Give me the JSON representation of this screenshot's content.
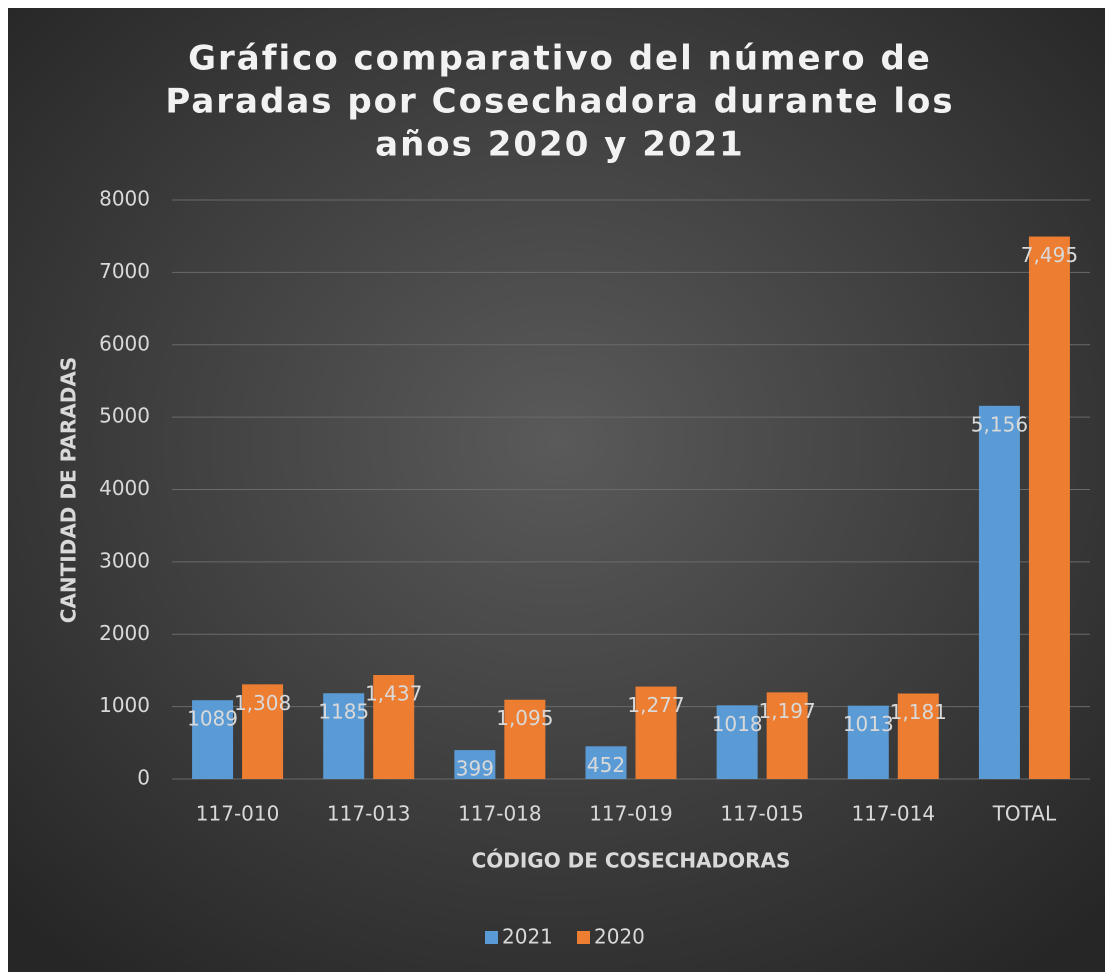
{
  "chart_data": {
    "type": "bar",
    "title": [
      "Gráfico comparativo del número de",
      "Paradas por Cosechadora durante los",
      "años 2020 y 2021"
    ],
    "x_label": "CÓDIGO DE COSECHADORAS",
    "y_label": "CANTIDAD DE PARADAS",
    "categories": [
      "117-010",
      "117-013",
      "117-018",
      "117-019",
      "117-015",
      "117-014",
      "TOTAL"
    ],
    "series": [
      {
        "name": "2021",
        "color": "#5b9bd5",
        "values": [
          1089,
          1185,
          399,
          452,
          1018,
          1013,
          5156
        ],
        "value_labels": [
          "1089",
          "1185",
          "399",
          "452",
          "1018",
          "1013",
          "5,156"
        ]
      },
      {
        "name": "2020",
        "color": "#ed7d31",
        "values": [
          1308,
          1437,
          1095,
          1277,
          1197,
          1181,
          7495
        ],
        "value_labels": [
          "1,308",
          "1,437",
          "1,095",
          "1,277",
          "1,197",
          "1,181",
          "7,495"
        ]
      }
    ],
    "ylim": [
      0,
      8000
    ],
    "yticks": [
      0,
      1000,
      2000,
      3000,
      4000,
      5000,
      6000,
      7000,
      8000
    ],
    "grid": true,
    "legend": "bottom"
  }
}
